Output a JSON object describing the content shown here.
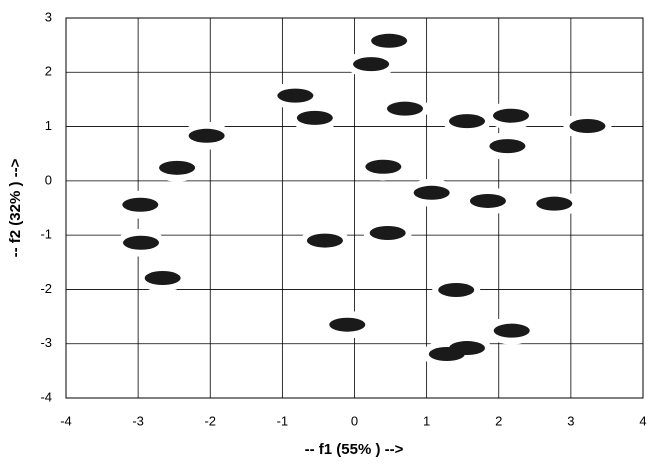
{
  "chart_data": {
    "type": "scatter",
    "x_label": "-- f1 (55% ) -->",
    "y_label": "-- f2 (32% ) -->",
    "x": [
      0.48,
      0.23,
      -0.82,
      -0.55,
      -2.05,
      0.7,
      1.56,
      2.17,
      3.23,
      2.12,
      0.4,
      -2.46,
      -2.97,
      1.07,
      1.85,
      2.77,
      0.46,
      -0.41,
      -2.96,
      -2.66,
      1.41,
      -0.1,
      2.18,
      1.28,
      1.56
    ],
    "y": [
      2.58,
      2.15,
      1.57,
      1.16,
      0.83,
      1.33,
      1.1,
      1.2,
      1.01,
      0.64,
      0.26,
      0.24,
      -0.44,
      -0.22,
      -0.37,
      -0.42,
      -0.96,
      -1.1,
      -1.14,
      -1.79,
      -2.01,
      -2.65,
      -2.76,
      -3.19,
      -3.08
    ],
    "color": "#1a1a1a",
    "xlim": [
      -4,
      4
    ],
    "xticks": [
      -4,
      -3,
      -2,
      -1,
      0,
      1,
      2,
      3,
      4
    ],
    "ylim": [
      -4,
      3
    ],
    "yticks": [
      -4,
      -3,
      -2,
      -1,
      0,
      1,
      2,
      3
    ],
    "grid": true
  }
}
